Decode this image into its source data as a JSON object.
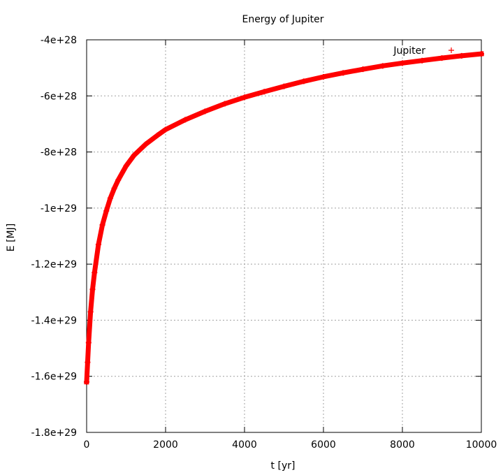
{
  "chart_data": {
    "type": "scatter",
    "title": "Energy of Jupiter",
    "xlabel": "t [yr]",
    "ylabel": "E [MJ]",
    "xlim": [
      0,
      10000
    ],
    "ylim": [
      -1.8e+29,
      -4e+28
    ],
    "x_ticks": [
      0,
      2000,
      4000,
      6000,
      8000,
      10000
    ],
    "x_tick_labels": [
      "0",
      "2000",
      "4000",
      "6000",
      "8000",
      "10000"
    ],
    "y_ticks": [
      -4e+28,
      -6e+28,
      -8e+28,
      -1e+29,
      -1.2e+29,
      -1.4e+29,
      -1.6e+29,
      -1.8e+29
    ],
    "y_tick_labels": [
      "-4e+28",
      "-6e+28",
      "-8e+28",
      "-1e+29",
      "-1.2e+29",
      "-1.4e+29",
      "-1.6e+29",
      "-1.8e+29"
    ],
    "grid": true,
    "legend_position": "top-right",
    "series": [
      {
        "name": "Jupiter",
        "color": "#ff0000",
        "marker": "plus",
        "x": [
          0,
          25,
          50,
          100,
          150,
          200,
          300,
          400,
          500,
          600,
          700,
          800,
          1000,
          1200,
          1500,
          1800,
          2000,
          2500,
          3000,
          3500,
          4000,
          4500,
          5000,
          5500,
          6000,
          6500,
          7000,
          7500,
          8000,
          8500,
          9000,
          9500,
          10000
        ],
        "y": [
          -1.62e+29,
          -1.55e+29,
          -1.48e+29,
          -1.37e+29,
          -1.29e+29,
          -1.23e+29,
          -1.13e+29,
          -1.06e+29,
          -1.01e+29,
          -9.65e+28,
          -9.3e+28,
          -9e+28,
          -8.5e+28,
          -8.12e+28,
          -7.72e+28,
          -7.4e+28,
          -7.2e+28,
          -6.85e+28,
          -6.55e+28,
          -6.28e+28,
          -6.05e+28,
          -5.85e+28,
          -5.66e+28,
          -5.48e+28,
          -5.32e+28,
          -5.18e+28,
          -5.05e+28,
          -4.93e+28,
          -4.83e+28,
          -4.74e+28,
          -4.65e+28,
          -4.57e+28,
          -4.5e+28
        ]
      }
    ]
  }
}
